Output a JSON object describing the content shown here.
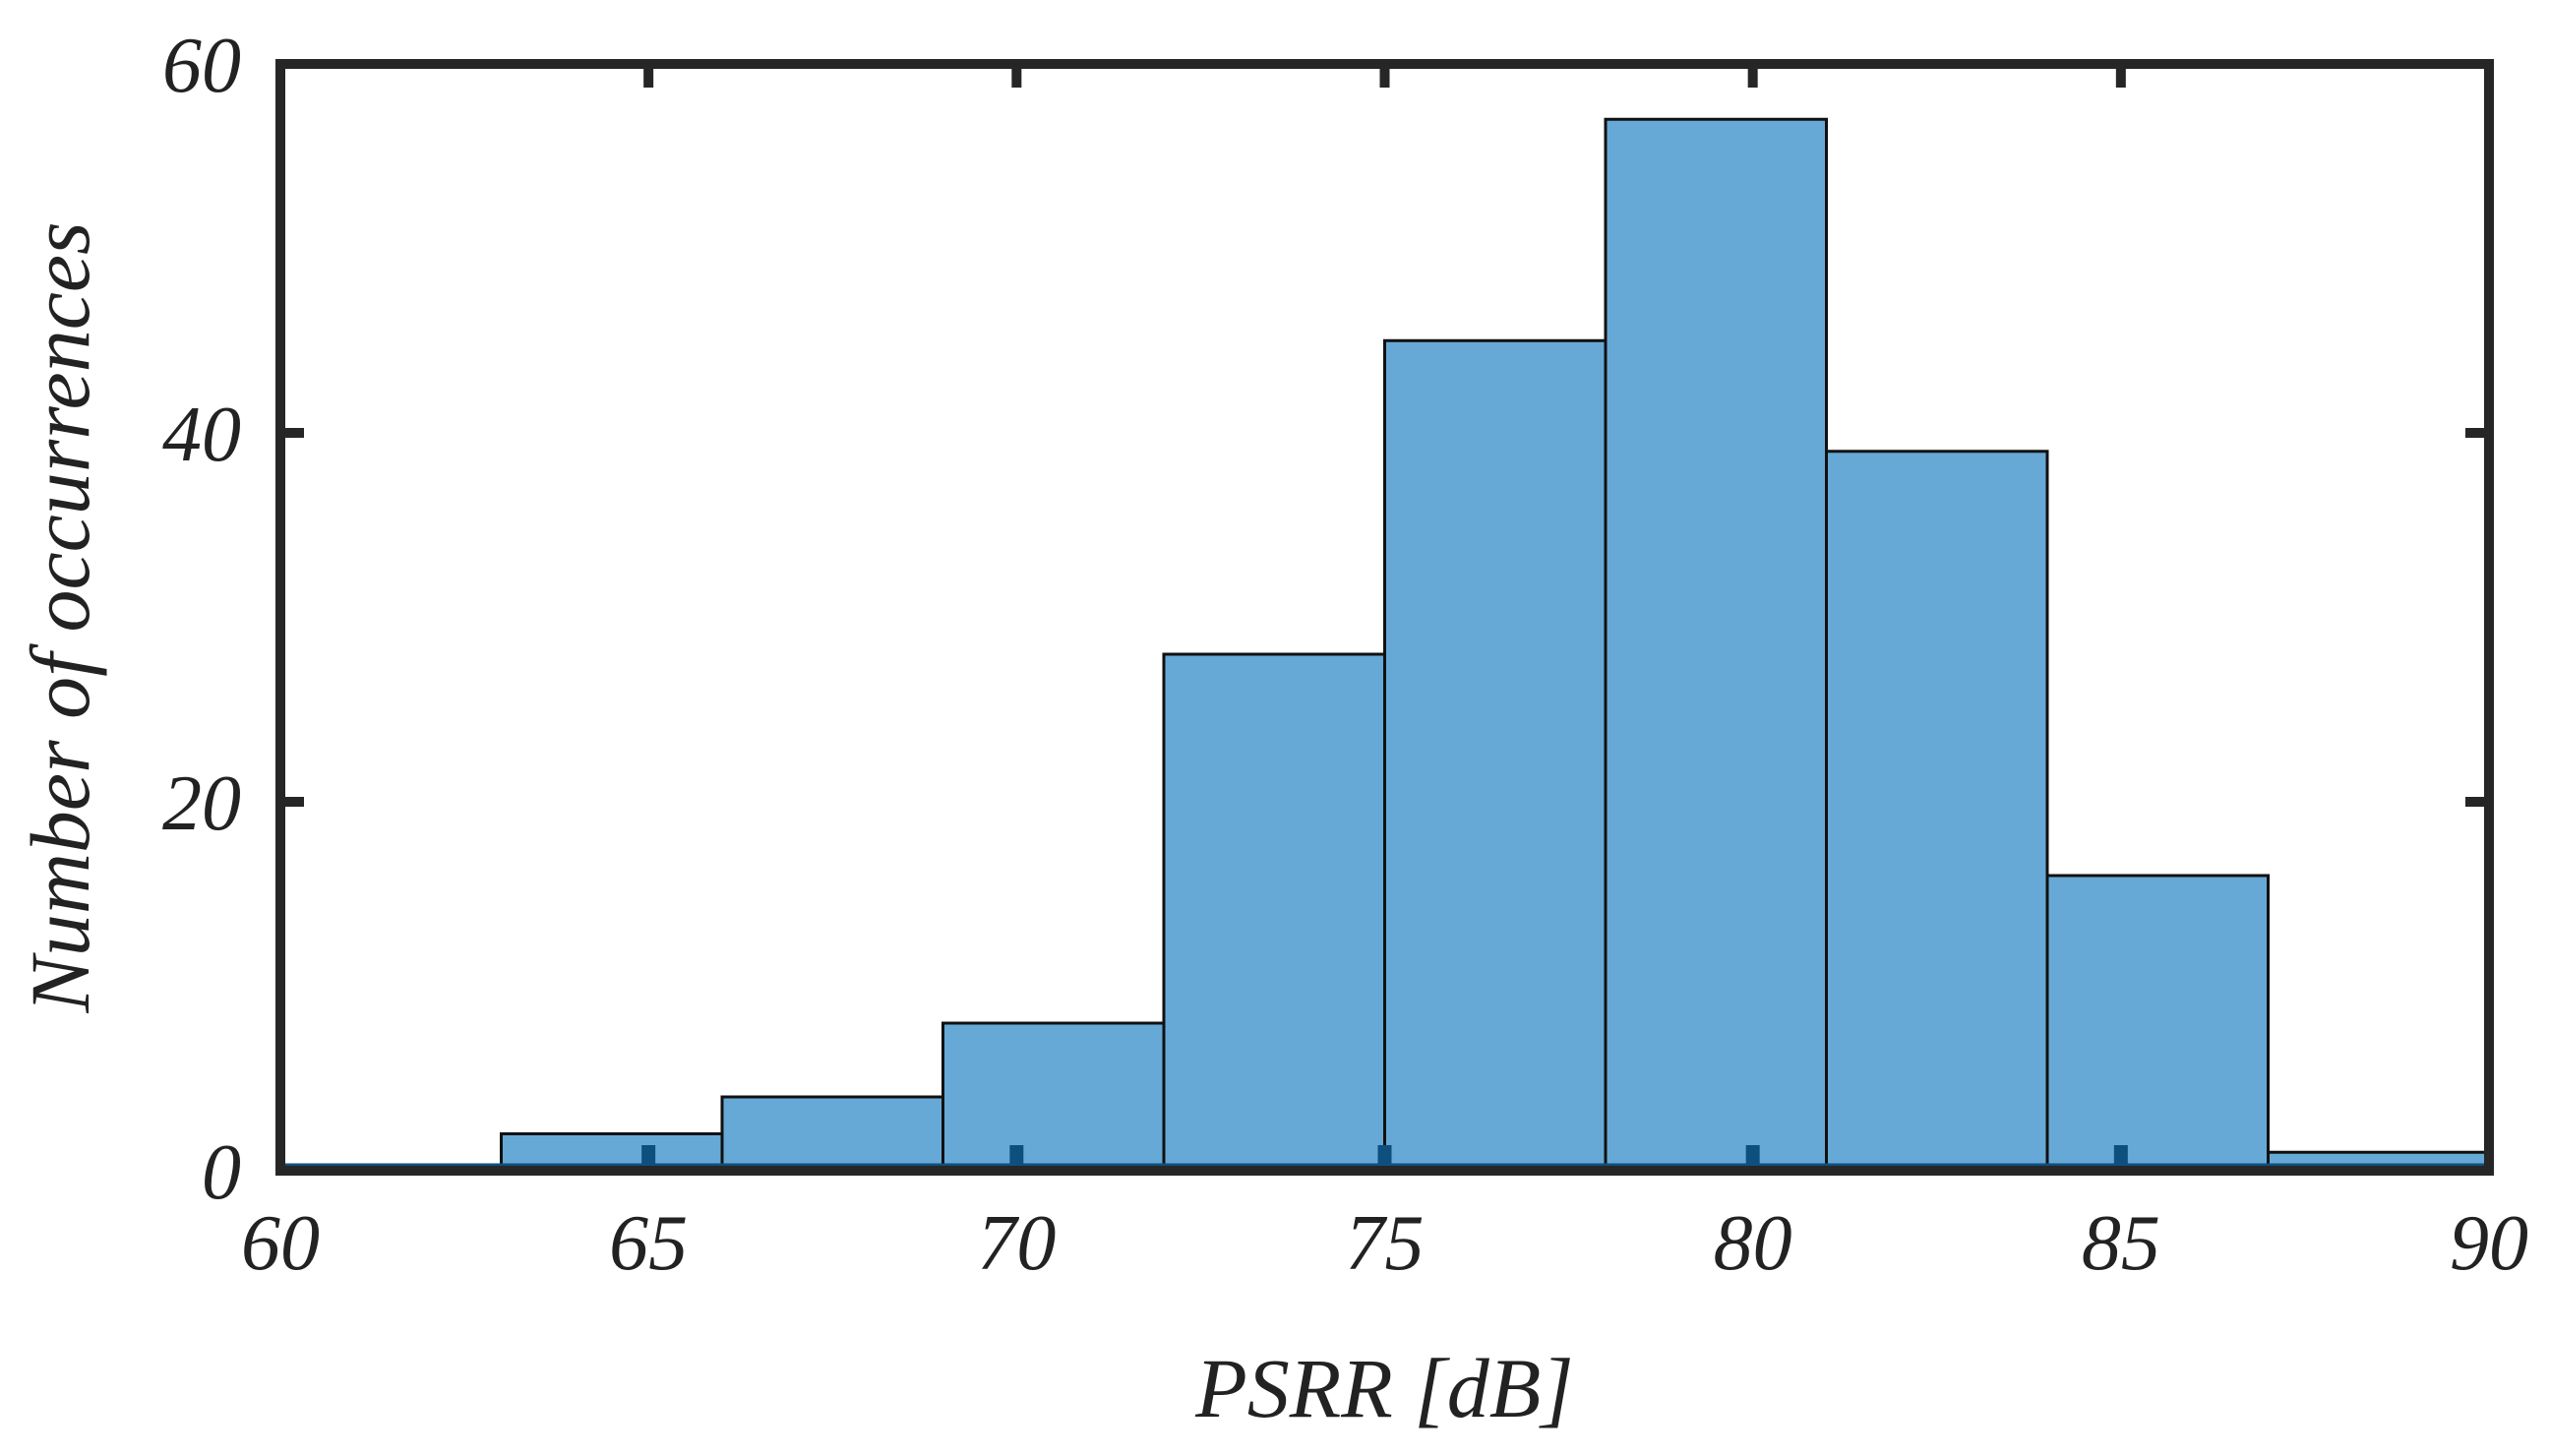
{
  "chart_data": {
    "type": "bar",
    "title": "",
    "xlabel": "PSRR [dB]",
    "ylabel": "Number of occurrences",
    "xlim": [
      60,
      90
    ],
    "ylim": [
      0,
      60
    ],
    "xticks": [
      "60",
      "65",
      "70",
      "75",
      "80",
      "85",
      "90"
    ],
    "yticks": [
      "0",
      "20",
      "40",
      "60"
    ],
    "bin_edges": [
      60,
      63,
      66,
      69,
      72,
      75,
      78,
      81,
      84,
      87,
      90
    ],
    "values": [
      0,
      2,
      4,
      8,
      28,
      45,
      57,
      39,
      16,
      1
    ],
    "grid": false,
    "legend": "none",
    "colors": {
      "bar_fill": "#66a9d6",
      "bar_edge": "#111111",
      "axis": "#262626",
      "rug": "#0f4f7e"
    },
    "rug_marks_x": [
      65,
      70,
      75,
      80,
      85
    ]
  }
}
